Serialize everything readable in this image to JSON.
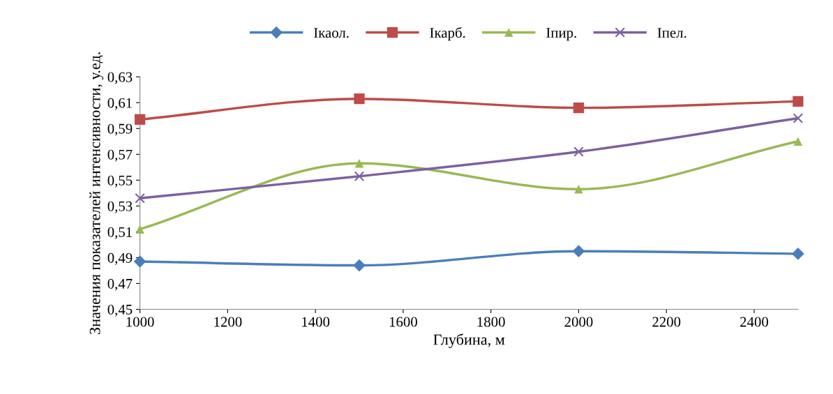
{
  "chart_data": {
    "type": "line",
    "xlabel": "Глубина, м",
    "ylabel": "Значения показателей интенсивности, у.ед.",
    "x": [
      1000,
      1500,
      2000,
      2500
    ],
    "series": [
      {
        "name": "Ікаол.",
        "color": "#4a7ebb",
        "marker": "diamond",
        "values": [
          0.487,
          0.484,
          0.495,
          0.493
        ]
      },
      {
        "name": "Ікарб.",
        "color": "#be4b48",
        "marker": "square",
        "values": [
          0.597,
          0.613,
          0.606,
          0.611
        ]
      },
      {
        "name": "Іпир.",
        "color": "#98b954",
        "marker": "triangle",
        "values": [
          0.512,
          0.563,
          0.543,
          0.58
        ]
      },
      {
        "name": "Іпел.",
        "color": "#7d60a0",
        "marker": "cross",
        "values": [
          0.536,
          0.553,
          0.572,
          0.598
        ]
      }
    ],
    "xlim": [
      1000,
      2500
    ],
    "xticks": [
      1000,
      1200,
      1400,
      1600,
      1800,
      2000,
      2200,
      2400
    ],
    "ylim": [
      0.45,
      0.63
    ],
    "yticks": [
      {
        "value": 0.45,
        "label": "0,45"
      },
      {
        "value": 0.47,
        "label": "0,47"
      },
      {
        "value": 0.49,
        "label": "0,49"
      },
      {
        "value": 0.51,
        "label": "0,51"
      },
      {
        "value": 0.53,
        "label": "0,53"
      },
      {
        "value": 0.55,
        "label": "0,55"
      },
      {
        "value": 0.57,
        "label": "0,57"
      },
      {
        "value": 0.59,
        "label": "0,59"
      },
      {
        "value": 0.61,
        "label": "0,61"
      },
      {
        "value": 0.63,
        "label": "0,63"
      }
    ],
    "grid": false,
    "legend": "top"
  }
}
